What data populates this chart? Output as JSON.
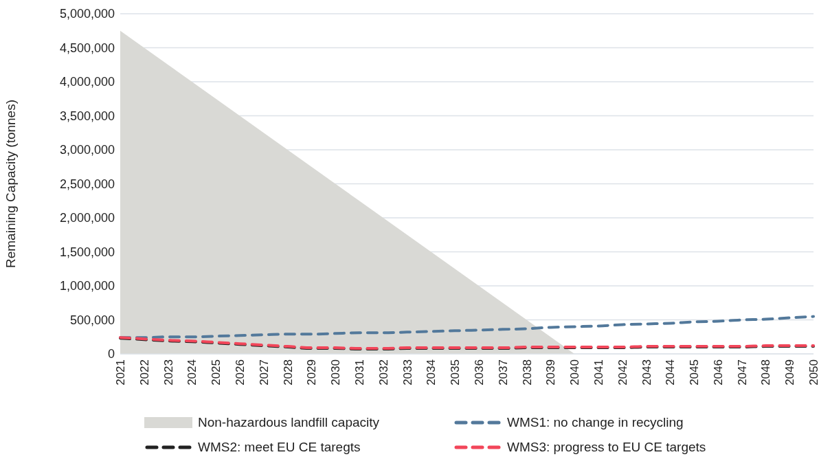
{
  "chart_data": {
    "type": "line",
    "ylabel": "Remaining Capacity (tonnes)",
    "categories": [
      "2021",
      "2022",
      "2023",
      "2024",
      "2025",
      "2026",
      "2027",
      "2028",
      "2029",
      "2030",
      "2031",
      "2032",
      "2033",
      "2034",
      "2035",
      "2036",
      "2037",
      "2038",
      "2039",
      "2040",
      "2041",
      "2042",
      "2043",
      "2044",
      "2045",
      "2046",
      "2047",
      "2048",
      "2049",
      "2050"
    ],
    "series": [
      {
        "name": "Non-hazardous landfill capacity",
        "type": "area",
        "color": "#d9d9d5",
        "values": [
          4750000,
          4500000,
          4250000,
          4000000,
          3750000,
          3500000,
          3250000,
          3000000,
          2750000,
          2500000,
          2250000,
          2000000,
          1750000,
          1500000,
          1250000,
          1000000,
          750000,
          500000,
          250000,
          0,
          null,
          null,
          null,
          null,
          null,
          null,
          null,
          null,
          null,
          null
        ]
      },
      {
        "name": "WMS1: no change in recycling",
        "color": "#53799b",
        "line_style": "dashed",
        "values": [
          240000,
          240000,
          250000,
          250000,
          260000,
          270000,
          280000,
          290000,
          290000,
          300000,
          310000,
          310000,
          320000,
          330000,
          340000,
          350000,
          360000,
          370000,
          390000,
          400000,
          410000,
          430000,
          440000,
          450000,
          470000,
          480000,
          500000,
          510000,
          530000,
          550000
        ]
      },
      {
        "name": "WMS2: meet EU CE taregts",
        "color": "#222222",
        "line_style": "dashed",
        "values": [
          230000,
          210000,
          190000,
          180000,
          160000,
          140000,
          120000,
          100000,
          80000,
          80000,
          70000,
          70000,
          80000,
          80000,
          80000,
          80000,
          80000,
          90000,
          90000,
          90000,
          90000,
          90000,
          100000,
          100000,
          100000,
          100000,
          100000,
          110000,
          110000,
          110000
        ]
      },
      {
        "name": "WMS3: progress to EU CE targets",
        "color": "#f2465a",
        "line_style": "dashed",
        "values": [
          240000,
          220000,
          200000,
          190000,
          170000,
          150000,
          130000,
          110000,
          90000,
          90000,
          80000,
          80000,
          90000,
          90000,
          90000,
          90000,
          90000,
          100000,
          100000,
          100000,
          100000,
          100000,
          110000,
          110000,
          110000,
          110000,
          110000,
          120000,
          120000,
          120000
        ]
      }
    ],
    "ylim": [
      0,
      5000000
    ],
    "yticks": [
      0,
      {
        "value": 500000,
        "label": "500,000"
      },
      {
        "value": 1000000,
        "label": "1,000,000"
      },
      {
        "value": 1500000,
        "label": "1,500,000"
      },
      {
        "value": 2000000,
        "label": "2,000,000"
      },
      {
        "value": 2500000,
        "label": "2,500,000"
      },
      {
        "value": 3000000,
        "label": "3,000,000"
      },
      {
        "value": 3500000,
        "label": "3,500,000"
      },
      {
        "value": 4000000,
        "label": "4,000,000"
      },
      {
        "value": 4500000,
        "label": "4,500,000"
      },
      {
        "value": 5000000,
        "label": "5,000,000"
      }
    ],
    "grid": "y",
    "legend": "bottom",
    "marker": "none"
  }
}
